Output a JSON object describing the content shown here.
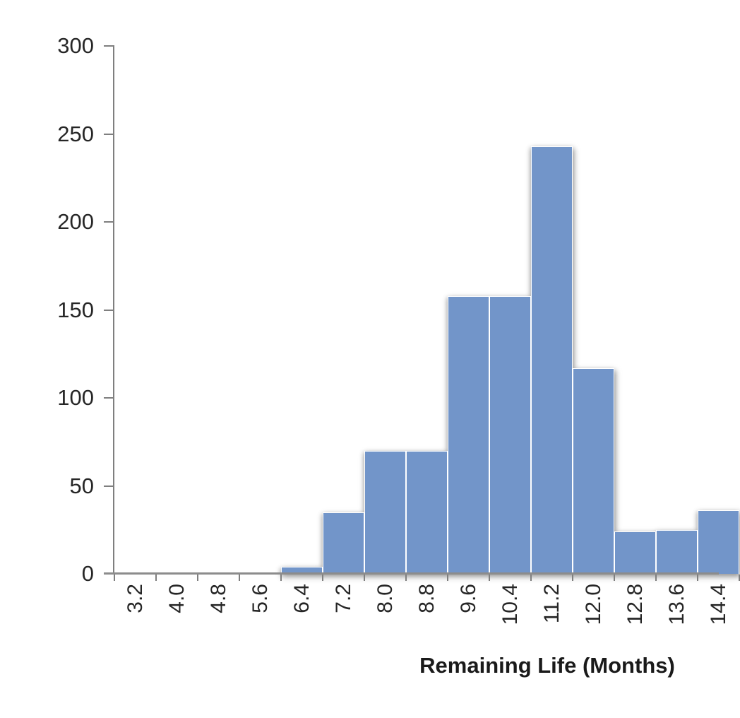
{
  "chart_data": {
    "type": "bar",
    "subtype": "histogram",
    "title": "",
    "xlabel": "Remaining Life (Months)",
    "ylabel": "",
    "categories": [
      "3.2",
      "4.0",
      "4.8",
      "5.6",
      "6.4",
      "7.2",
      "8.0",
      "8.8",
      "9.6",
      "10.4",
      "11.2",
      "12.0",
      "12.8",
      "13.6",
      "14.4"
    ],
    "values": [
      0,
      0,
      0,
      0,
      4,
      35,
      70,
      70,
      158,
      158,
      243,
      117,
      24,
      25,
      36
    ],
    "ylim": [
      0,
      300
    ],
    "yticks": [
      0,
      50,
      100,
      150,
      200,
      250,
      300
    ],
    "grid": "off",
    "legend": "none",
    "layout_note": "rightmost bar and its 14.4 label are clipped by the image edge",
    "colors": {
      "bar_fill": "#7295c9",
      "bar_border": "#ffffff",
      "axis_line": "#7f7f7f",
      "baseline": "#8c8c8c",
      "tick_label": "#262626",
      "axis_title": "#1a1a1a",
      "background": "#ffffff"
    }
  }
}
